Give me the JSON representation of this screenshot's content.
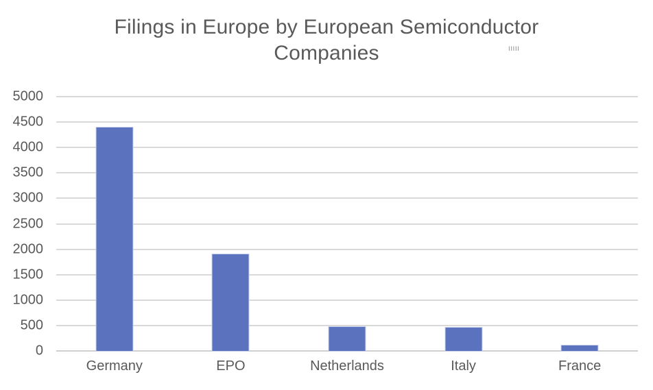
{
  "chart_data": {
    "type": "bar",
    "title": "Filings in Europe by European Semiconductor Companies",
    "xlabel": "",
    "ylabel": "",
    "categories": [
      "Germany",
      "EPO",
      "Netherlands",
      "Italy",
      "France"
    ],
    "values": [
      4400,
      1900,
      470,
      465,
      110
    ],
    "ylim": [
      0,
      5000
    ],
    "yticks": [
      0,
      500,
      1000,
      1500,
      2000,
      2500,
      3000,
      3500,
      4000,
      4500,
      5000
    ],
    "grid": true,
    "legend": "none",
    "colors": {
      "bar": "#5b72be",
      "bar_border": "#ccd3ec",
      "gridline": "#d9d9d9",
      "axis_line": "#cfcfcf",
      "text": "#595959",
      "background": "#ffffff"
    }
  },
  "artifact": {
    "marks": "IIIII"
  }
}
